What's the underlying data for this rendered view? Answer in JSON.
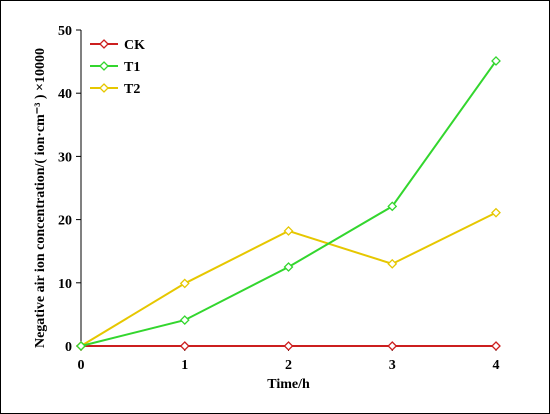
{
  "chart_data": {
    "type": "line",
    "title": "",
    "xlabel": "Time/h",
    "ylabel": "Negative air ion concentration/( ion·cm⁻³ ) ×10000",
    "x": [
      0,
      1,
      2,
      3,
      4
    ],
    "x_tick_labels": [
      "0",
      "1",
      "2",
      "3",
      "4"
    ],
    "xlim": [
      0,
      4
    ],
    "ylim": [
      0,
      50
    ],
    "y_ticks": [
      0,
      10,
      20,
      30,
      40,
      50
    ],
    "y_tick_labels": [
      "0",
      "10",
      "20",
      "30",
      "40",
      "50"
    ],
    "grid": false,
    "legend_position": "top-left",
    "marker": "open-diamond",
    "series": [
      {
        "name": "CK",
        "color": "#cc1f1f",
        "values": [
          0,
          0,
          0,
          0,
          0
        ]
      },
      {
        "name": "T1",
        "color": "#33d62e",
        "values": [
          0,
          4.1,
          12.5,
          22.1,
          45.1
        ]
      },
      {
        "name": "T2",
        "color": "#e6c700",
        "values": [
          0,
          9.9,
          18.2,
          13.0,
          21.1
        ]
      }
    ]
  }
}
